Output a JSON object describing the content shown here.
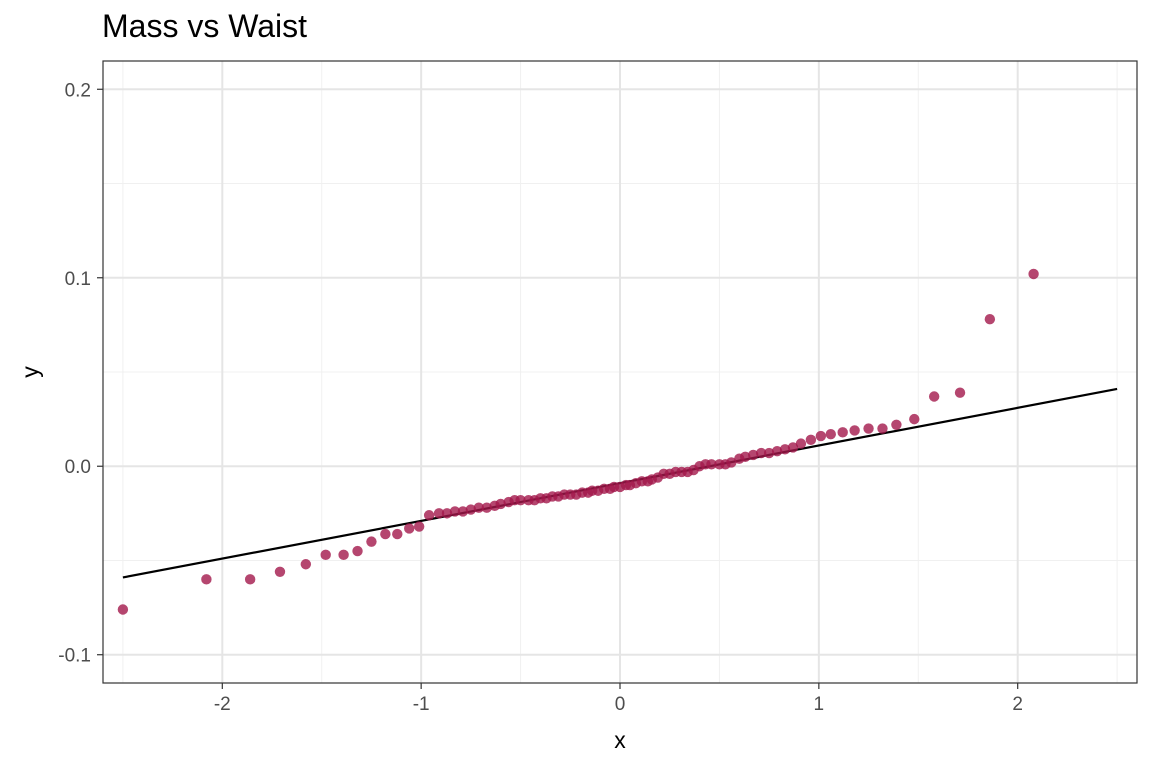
{
  "chart_data": {
    "type": "scatter",
    "title": "Mass vs Waist",
    "xlabel": "x",
    "ylabel": "y",
    "xlim": [
      -2.6,
      2.6
    ],
    "ylim": [
      -0.115,
      0.215
    ],
    "xticks": [
      -2,
      -1,
      0,
      1,
      2
    ],
    "xtick_labels": [
      "-2",
      "-1",
      "0",
      "1",
      "2"
    ],
    "yticks": [
      -0.1,
      0.0,
      0.1,
      0.2
    ],
    "ytick_labels": [
      "-0.1",
      "0.0",
      "0.1",
      "0.2"
    ],
    "grid": true,
    "point_color": "#A3184B",
    "line_color": "#000000",
    "reference_line": {
      "x": [
        -2.5,
        2.5
      ],
      "y": [
        -0.059,
        0.041
      ]
    },
    "points": {
      "x": [
        -2.5,
        -2.08,
        -1.86,
        -1.71,
        -1.58,
        -1.48,
        -1.39,
        -1.32,
        -1.25,
        -1.18,
        -1.12,
        -1.06,
        -1.01,
        -0.96,
        -0.91,
        -0.87,
        -0.83,
        -0.79,
        -0.75,
        -0.71,
        -0.67,
        -0.63,
        -0.6,
        -0.56,
        -0.53,
        -0.5,
        -0.46,
        -0.43,
        -0.4,
        -0.37,
        -0.34,
        -0.31,
        -0.28,
        -0.25,
        -0.22,
        -0.19,
        -0.16,
        -0.14,
        -0.11,
        -0.08,
        -0.05,
        -0.03,
        0.0,
        0.03,
        0.05,
        0.08,
        0.11,
        0.14,
        0.16,
        0.19,
        0.22,
        0.25,
        0.28,
        0.31,
        0.34,
        0.37,
        0.4,
        0.43,
        0.46,
        0.5,
        0.53,
        0.56,
        0.6,
        0.63,
        0.67,
        0.71,
        0.75,
        0.79,
        0.83,
        0.87,
        0.91,
        0.96,
        1.01,
        1.06,
        1.12,
        1.18,
        1.25,
        1.32,
        1.39,
        1.48,
        1.58,
        1.71,
        1.86,
        2.08
      ],
      "y": [
        -0.076,
        -0.06,
        -0.06,
        -0.056,
        -0.052,
        -0.047,
        -0.047,
        -0.045,
        -0.04,
        -0.036,
        -0.036,
        -0.033,
        -0.032,
        -0.026,
        -0.025,
        -0.025,
        -0.024,
        -0.024,
        -0.023,
        -0.022,
        -0.022,
        -0.021,
        -0.02,
        -0.019,
        -0.018,
        -0.018,
        -0.018,
        -0.018,
        -0.017,
        -0.017,
        -0.016,
        -0.016,
        -0.015,
        -0.015,
        -0.015,
        -0.014,
        -0.014,
        -0.013,
        -0.013,
        -0.012,
        -0.012,
        -0.011,
        -0.011,
        -0.01,
        -0.01,
        -0.009,
        -0.008,
        -0.008,
        -0.007,
        -0.006,
        -0.004,
        -0.004,
        -0.003,
        -0.003,
        -0.003,
        -0.002,
        0.0,
        0.001,
        0.001,
        0.001,
        0.001,
        0.002,
        0.004,
        0.005,
        0.006,
        0.007,
        0.007,
        0.008,
        0.009,
        0.01,
        0.012,
        0.014,
        0.016,
        0.017,
        0.018,
        0.019,
        0.02,
        0.02,
        0.022,
        0.025,
        0.037,
        0.039,
        0.078,
        0.102
      ]
    }
  }
}
